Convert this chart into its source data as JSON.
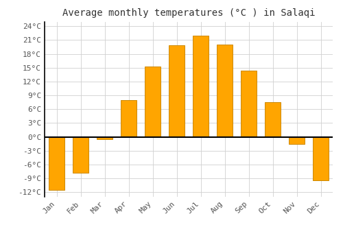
{
  "title": "Average monthly temperatures (°C ) in Salaqi",
  "months": [
    "Jan",
    "Feb",
    "Mar",
    "Apr",
    "May",
    "Jun",
    "Jul",
    "Aug",
    "Sep",
    "Oct",
    "Nov",
    "Dec"
  ],
  "values": [
    -11.5,
    -7.8,
    -0.5,
    8.0,
    15.2,
    19.8,
    22.0,
    20.0,
    14.3,
    7.5,
    -1.5,
    -9.5
  ],
  "bar_color": "#FFA500",
  "bar_edge_color": "#CC8800",
  "background_color": "#ffffff",
  "grid_color": "#d0d0d0",
  "ylim": [
    -13,
    25
  ],
  "yticks": [
    -12,
    -9,
    -6,
    -3,
    0,
    3,
    6,
    9,
    12,
    15,
    18,
    21,
    24
  ],
  "ytick_labels": [
    "-12°C",
    "-9°C",
    "-6°C",
    "-3°C",
    "0°C",
    "3°C",
    "6°C",
    "9°C",
    "12°C",
    "15°C",
    "18°C",
    "21°C",
    "24°C"
  ],
  "title_fontsize": 10,
  "tick_fontsize": 8,
  "font_family": "monospace",
  "bar_width": 0.65
}
